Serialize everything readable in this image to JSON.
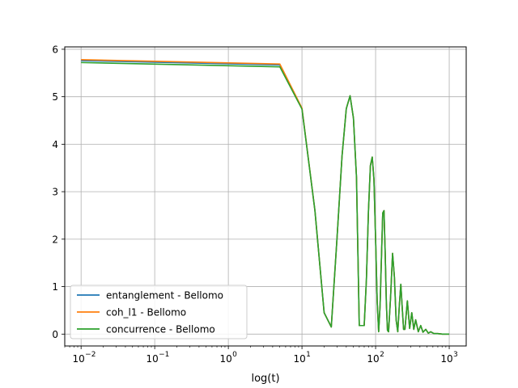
{
  "chart_data": {
    "type": "line",
    "title": "",
    "xlabel": "log(t)",
    "ylabel": "",
    "xscale": "log",
    "xlim": [
      0.006,
      1700
    ],
    "ylim": [
      -0.25,
      6.05
    ],
    "grid": true,
    "legend_position": "lower-left",
    "x_ticks": [
      {
        "value": 0.01,
        "base": "10",
        "exp": "−2"
      },
      {
        "value": 0.1,
        "base": "10",
        "exp": "−1"
      },
      {
        "value": 1,
        "base": "10",
        "exp": "0"
      },
      {
        "value": 10,
        "base": "10",
        "exp": "1"
      },
      {
        "value": 100,
        "base": "10",
        "exp": "2"
      },
      {
        "value": 1000,
        "base": "10",
        "exp": "3"
      }
    ],
    "y_ticks": [
      {
        "value": 0,
        "label": "0"
      },
      {
        "value": 1,
        "label": "1"
      },
      {
        "value": 2,
        "label": "2"
      },
      {
        "value": 3,
        "label": "3"
      },
      {
        "value": 4,
        "label": "4"
      },
      {
        "value": 5,
        "label": "5"
      },
      {
        "value": 6,
        "label": "6"
      }
    ],
    "series": [
      {
        "name": "entanglement - Bellomo",
        "color": "#1f77b4",
        "x": [
          0.01,
          5,
          10,
          15,
          20,
          25,
          30,
          35,
          40,
          45,
          50,
          55,
          60,
          65,
          70,
          75,
          80,
          85,
          90,
          95,
          100,
          105,
          110,
          115,
          120,
          125,
          130,
          135,
          140,
          145,
          150,
          160,
          170,
          180,
          190,
          200,
          210,
          220,
          230,
          240,
          250,
          270,
          290,
          310,
          330,
          350,
          380,
          410,
          440,
          480,
          520,
          560,
          620,
          700,
          800,
          1000
        ],
        "y": [
          5.76,
          5.67,
          4.75,
          2.6,
          0.45,
          0.15,
          2.05,
          3.75,
          4.75,
          5.02,
          4.55,
          3.3,
          0.18,
          0.18,
          0.18,
          1.15,
          2.6,
          3.55,
          3.73,
          3.25,
          2.0,
          0.7,
          0.05,
          0.6,
          1.6,
          2.55,
          2.6,
          1.7,
          0.65,
          0.08,
          0.05,
          0.8,
          1.7,
          1.2,
          0.3,
          0.05,
          0.6,
          1.05,
          0.55,
          0.1,
          0.1,
          0.7,
          0.12,
          0.45,
          0.1,
          0.3,
          0.05,
          0.18,
          0.04,
          0.1,
          0.02,
          0.05,
          0.01,
          0.01,
          0.0,
          0.0
        ]
      },
      {
        "name": "coh_l1 - Bellomo",
        "color": "#ff7f0e",
        "x": [
          0.01,
          5,
          10,
          15,
          20,
          25,
          30,
          35,
          40,
          45,
          50,
          55,
          60,
          65,
          70,
          75,
          80,
          85,
          90,
          95,
          100,
          105,
          110,
          115,
          120,
          125,
          130,
          135,
          140,
          145,
          150,
          160,
          170,
          180,
          190,
          200,
          210,
          220,
          230,
          240,
          250,
          270,
          290,
          310,
          330,
          350,
          380,
          410,
          440,
          480,
          520,
          560,
          620,
          700,
          800,
          1000
        ],
        "y": [
          5.78,
          5.69,
          4.76,
          2.6,
          0.45,
          0.15,
          2.05,
          3.75,
          4.75,
          5.02,
          4.55,
          3.3,
          0.18,
          0.18,
          0.18,
          1.15,
          2.6,
          3.55,
          3.73,
          3.25,
          2.0,
          0.7,
          0.05,
          0.6,
          1.6,
          2.55,
          2.6,
          1.7,
          0.65,
          0.08,
          0.05,
          0.8,
          1.7,
          1.2,
          0.3,
          0.05,
          0.6,
          1.05,
          0.55,
          0.1,
          0.1,
          0.7,
          0.12,
          0.45,
          0.1,
          0.3,
          0.05,
          0.18,
          0.04,
          0.1,
          0.02,
          0.05,
          0.01,
          0.01,
          0.0,
          0.0
        ]
      },
      {
        "name": "concurrence - Bellomo",
        "color": "#2ca02c",
        "x": [
          0.01,
          5,
          10,
          15,
          20,
          25,
          30,
          35,
          40,
          45,
          50,
          55,
          60,
          65,
          70,
          75,
          80,
          85,
          90,
          95,
          100,
          105,
          110,
          115,
          120,
          125,
          130,
          135,
          140,
          145,
          150,
          160,
          170,
          180,
          190,
          200,
          210,
          220,
          230,
          240,
          250,
          270,
          290,
          310,
          330,
          350,
          380,
          410,
          440,
          480,
          520,
          560,
          620,
          700,
          800,
          1000
        ],
        "y": [
          5.72,
          5.63,
          4.74,
          2.6,
          0.45,
          0.15,
          2.05,
          3.75,
          4.75,
          5.02,
          4.55,
          3.3,
          0.18,
          0.18,
          0.18,
          1.15,
          2.6,
          3.55,
          3.73,
          3.25,
          2.0,
          0.7,
          0.05,
          0.6,
          1.6,
          2.55,
          2.6,
          1.7,
          0.65,
          0.08,
          0.05,
          0.8,
          1.7,
          1.2,
          0.3,
          0.05,
          0.6,
          1.05,
          0.55,
          0.1,
          0.1,
          0.7,
          0.12,
          0.45,
          0.1,
          0.3,
          0.05,
          0.18,
          0.04,
          0.1,
          0.02,
          0.05,
          0.01,
          0.01,
          0.0,
          0.0
        ]
      }
    ]
  }
}
